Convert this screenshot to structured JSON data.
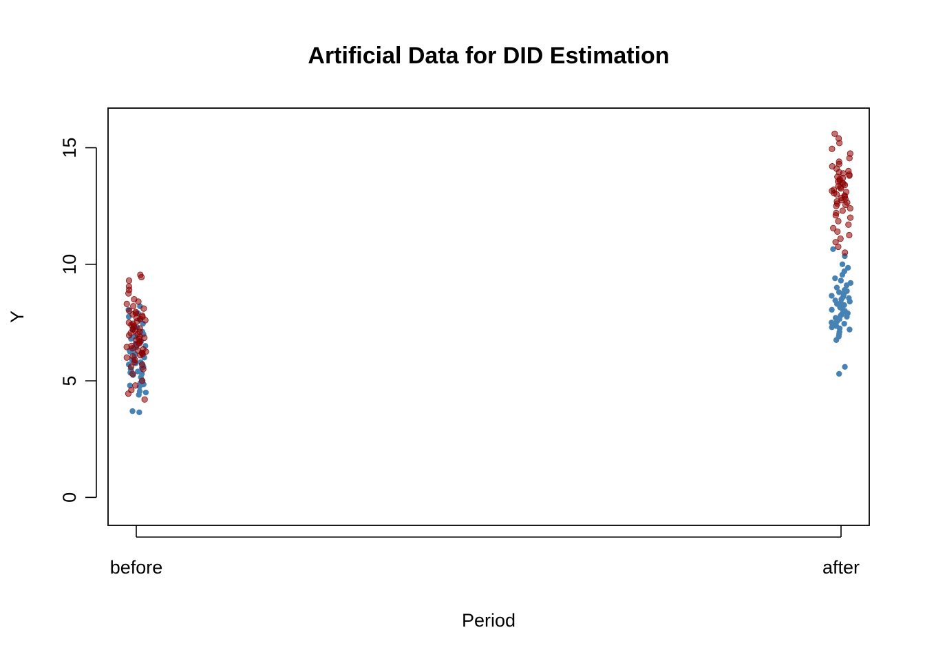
{
  "chart_data": {
    "type": "scatter",
    "title": "Artificial Data for DID Estimation",
    "xlabel": "Period",
    "ylabel": "Y",
    "categories": [
      "before",
      "after"
    ],
    "ylim": [
      -1.2,
      16.7
    ],
    "yticks": [
      0,
      5,
      10,
      15
    ],
    "grid": false,
    "legend": "none",
    "series": [
      {
        "color": "#4682B4",
        "alpha": 1.0,
        "before": [
          3.65,
          3.7,
          4.4,
          4.5,
          4.55,
          4.75,
          4.8,
          4.85,
          4.9,
          5.0,
          5.15,
          5.25,
          5.3,
          5.35,
          5.4,
          5.45,
          5.5,
          5.55,
          5.6,
          5.65,
          5.7,
          5.75,
          5.8,
          5.85,
          5.9,
          5.95,
          6.0,
          6.05,
          6.1,
          6.15,
          6.2,
          6.25,
          6.3,
          6.35,
          6.4,
          6.45,
          6.5,
          6.6,
          6.7,
          6.8,
          6.9,
          7.0,
          7.1,
          7.2,
          7.3,
          7.45,
          7.6,
          7.75,
          7.9,
          8.05,
          8.2
        ],
        "after": [
          5.3,
          5.6,
          6.75,
          6.9,
          7.0,
          7.1,
          7.2,
          7.25,
          7.3,
          7.35,
          7.4,
          7.45,
          7.5,
          7.55,
          7.6,
          7.65,
          7.7,
          7.75,
          7.8,
          7.85,
          7.9,
          7.95,
          8.0,
          8.05,
          8.1,
          8.15,
          8.2,
          8.25,
          8.3,
          8.35,
          8.4,
          8.45,
          8.5,
          8.55,
          8.6,
          8.65,
          8.7,
          8.75,
          8.8,
          8.85,
          8.9,
          9.0,
          9.1,
          9.2,
          9.3,
          9.4,
          9.55,
          9.7,
          9.85,
          10.0,
          10.35,
          10.65
        ]
      },
      {
        "color": "#8B0000",
        "alpha": 0.55,
        "before": [
          4.2,
          4.45,
          4.6,
          4.8,
          5.0,
          5.3,
          5.5,
          5.6,
          5.7,
          5.8,
          5.9,
          6.0,
          6.05,
          6.1,
          6.15,
          6.2,
          6.25,
          6.3,
          6.35,
          6.4,
          6.45,
          6.5,
          6.55,
          6.6,
          6.65,
          6.7,
          6.75,
          6.8,
          6.85,
          6.9,
          6.95,
          7.0,
          7.05,
          7.1,
          7.15,
          7.2,
          7.25,
          7.3,
          7.35,
          7.4,
          7.45,
          7.5,
          7.55,
          7.6,
          7.65,
          7.7,
          7.75,
          7.8,
          7.85,
          7.9,
          7.95,
          8.0,
          8.1,
          8.2,
          8.3,
          8.4,
          8.5,
          8.75,
          8.9,
          9.05,
          9.3,
          9.45,
          9.55
        ],
        "after": [
          10.5,
          10.75,
          10.95,
          11.1,
          11.25,
          11.4,
          11.55,
          11.7,
          11.85,
          12.0,
          12.1,
          12.2,
          12.3,
          12.4,
          12.5,
          12.55,
          12.6,
          12.65,
          12.7,
          12.75,
          12.8,
          12.85,
          12.9,
          12.95,
          13.0,
          13.05,
          13.1,
          13.15,
          13.2,
          13.25,
          13.3,
          13.35,
          13.4,
          13.45,
          13.5,
          13.55,
          13.6,
          13.65,
          13.7,
          13.75,
          13.8,
          13.85,
          13.9,
          13.95,
          14.0,
          14.1,
          14.2,
          14.3,
          14.4,
          14.55,
          14.75,
          14.95,
          15.2,
          15.4,
          15.6
        ]
      }
    ]
  }
}
